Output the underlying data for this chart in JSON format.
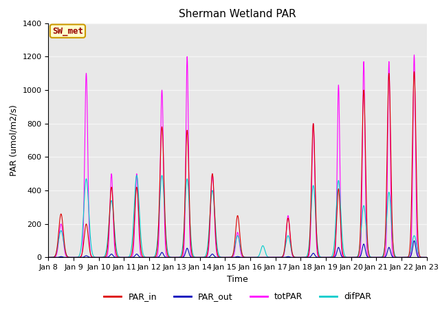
{
  "title": "Sherman Wetland PAR",
  "ylabel": "PAR (umol/m2/s)",
  "xlabel": "Time",
  "ylim": [
    0,
    1400
  ],
  "yticks": [
    0,
    200,
    400,
    600,
    800,
    1000,
    1200,
    1400
  ],
  "xtick_labels": [
    "Jan 8",
    "Jan 9",
    "Jan 10",
    "Jan 11",
    "Jan 12",
    "Jan 13",
    "Jan 14",
    "Jan 15",
    "Jan 16",
    "Jan 17",
    "Jan 18",
    "Jan 19",
    "Jan 20",
    "Jan 21",
    "Jan 22",
    "Jan 23"
  ],
  "fig_bg_color": "#ffffff",
  "plot_bg_color": "#e8e8e8",
  "grid_color": "#f5f5f5",
  "legend_label": "SW_met",
  "legend_bg": "#ffffcc",
  "legend_edge": "#cc9900",
  "legend_text_color": "#990000",
  "series_colors": {
    "PAR_in": "#dd0000",
    "PAR_out": "#0000bb",
    "totPAR": "#ff00ff",
    "difPAR": "#00cccc"
  },
  "title_fontsize": 11,
  "axis_label_fontsize": 9,
  "tick_fontsize": 8,
  "legend_fontsize": 9,
  "sw_met_fontsize": 9,
  "totPAR_peaks": [
    200,
    1100,
    500,
    500,
    1000,
    1200,
    500,
    150,
    0,
    250,
    800,
    1030,
    1170,
    1170,
    1210
  ],
  "PAR_in_peaks": [
    260,
    200,
    420,
    420,
    780,
    760,
    500,
    250,
    0,
    235,
    800,
    410,
    1000,
    1100,
    1110
  ],
  "PAR_out_peaks": [
    5,
    10,
    20,
    20,
    30,
    55,
    20,
    5,
    0,
    5,
    25,
    60,
    80,
    60,
    100
  ],
  "difPAR_peaks": [
    160,
    470,
    340,
    490,
    490,
    470,
    400,
    130,
    70,
    130,
    430,
    460,
    310,
    390,
    130
  ],
  "totPAR_widths": [
    0.08,
    0.06,
    0.06,
    0.06,
    0.06,
    0.05,
    0.07,
    0.07,
    0.05,
    0.07,
    0.06,
    0.05,
    0.05,
    0.05,
    0.05
  ],
  "PAR_in_widths": [
    0.09,
    0.08,
    0.08,
    0.08,
    0.08,
    0.07,
    0.08,
    0.08,
    0.05,
    0.08,
    0.07,
    0.07,
    0.07,
    0.07,
    0.07
  ],
  "difPAR_widths": [
    0.1,
    0.1,
    0.1,
    0.1,
    0.1,
    0.09,
    0.1,
    0.09,
    0.08,
    0.09,
    0.09,
    0.09,
    0.09,
    0.09,
    0.09
  ]
}
